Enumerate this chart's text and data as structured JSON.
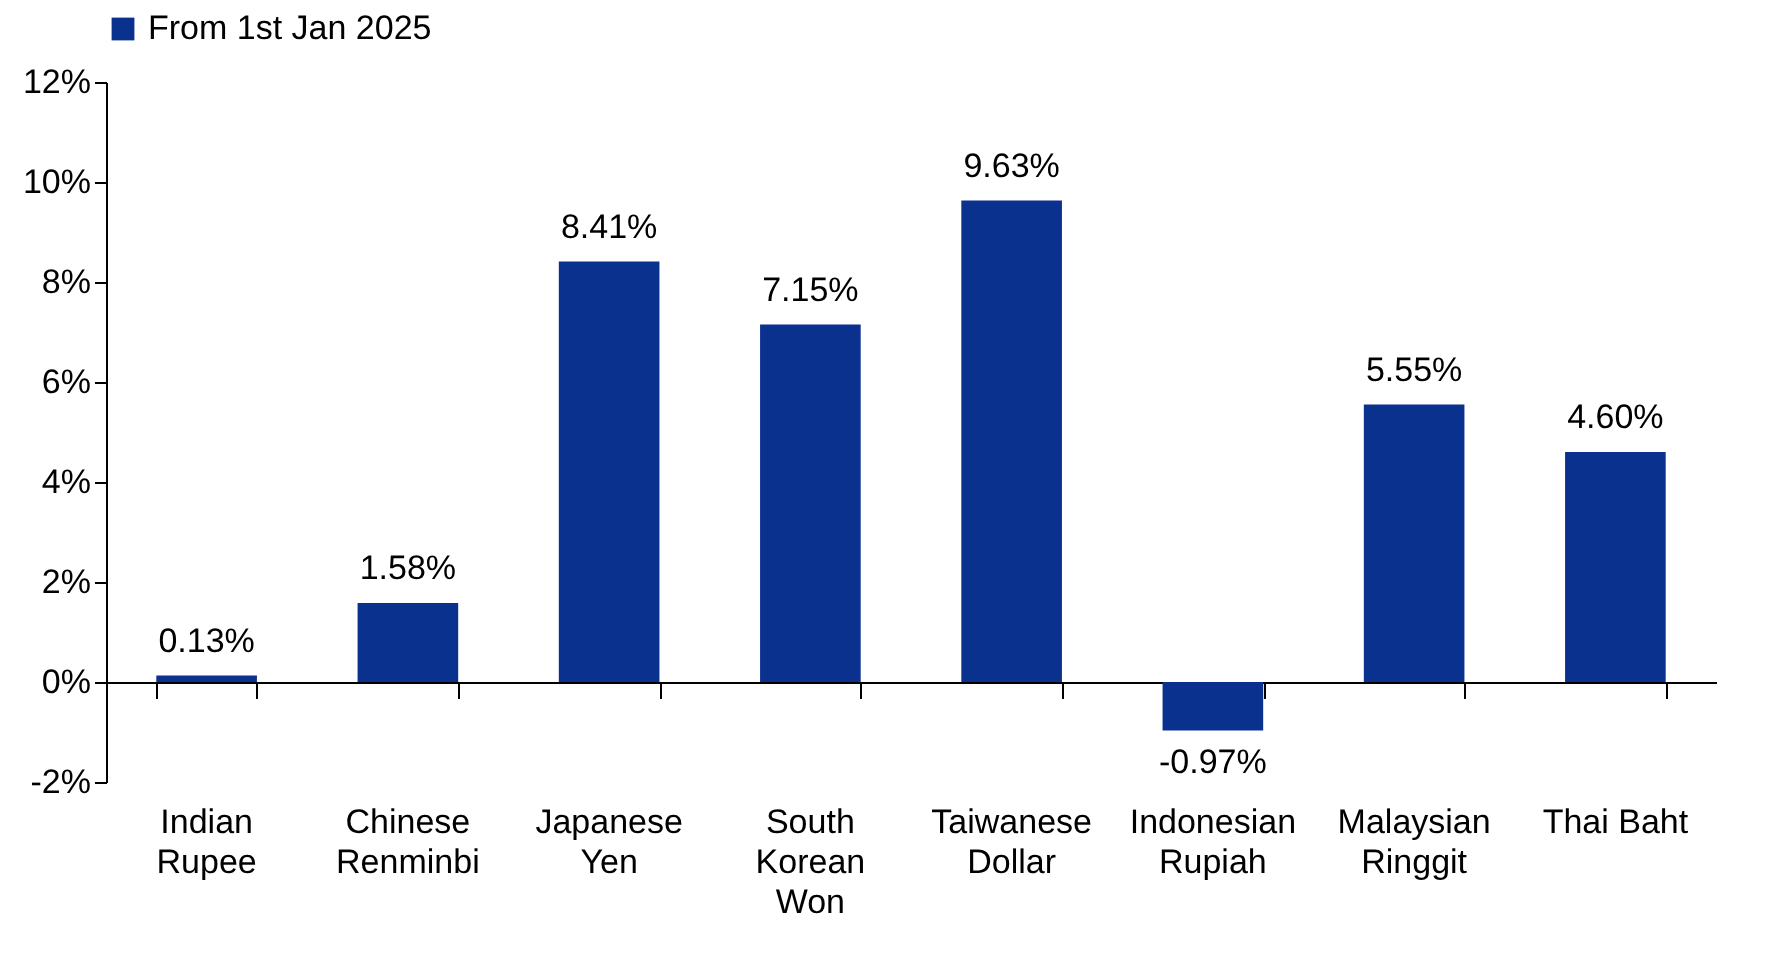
{
  "chart_data": {
    "type": "bar",
    "categories": [
      "Indian Rupee",
      "Chinese Renminbi",
      "Japanese Yen",
      "South Korean Won",
      "Taiwanese Dollar",
      "Indonesian Rupiah",
      "Malaysian Ringgit",
      "Thai Baht"
    ],
    "series": [
      {
        "name": "From 1st Jan 2025",
        "color": "#0b318f",
        "values": [
          0.13,
          1.58,
          8.41,
          7.15,
          9.63,
          -0.97,
          5.55,
          4.6
        ],
        "value_labels": [
          "0.13%",
          "1.58%",
          "8.41%",
          "7.15%",
          "9.63%",
          "-0.97%",
          "5.55%",
          "4.60%"
        ]
      }
    ],
    "ylim": [
      -2,
      12
    ],
    "yticks": [
      {
        "value": -2,
        "label": "-2%"
      },
      {
        "value": 0,
        "label": "0%"
      },
      {
        "value": 2,
        "label": "2%"
      },
      {
        "value": 4,
        "label": "4%"
      },
      {
        "value": 6,
        "label": "6%"
      },
      {
        "value": 8,
        "label": "8%"
      },
      {
        "value": 10,
        "label": "10%"
      },
      {
        "value": 12,
        "label": "12%"
      }
    ],
    "legend": "top"
  }
}
